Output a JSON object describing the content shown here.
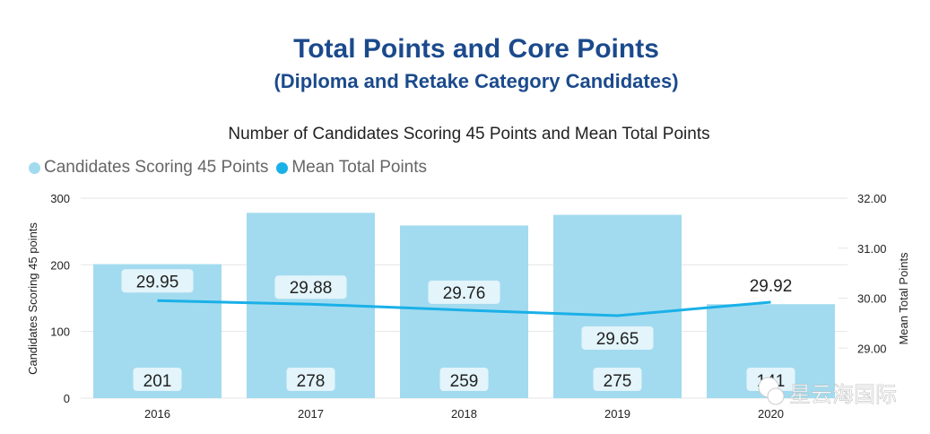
{
  "title": "Total Points and Core Points",
  "subtitle": "(Diploma and Retake Category Candidates)",
  "watermark": "星云海国际",
  "colors": {
    "bar": "#a2dbef",
    "line": "#1ab0e8",
    "title": "#1b4a8c",
    "label_box": "#e3f4fb"
  },
  "chart_data": {
    "type": "bar+line",
    "title": "Number of Candidates Scoring 45 Points and Mean Total Points",
    "categories": [
      "2016",
      "2017",
      "2018",
      "2019",
      "2020"
    ],
    "series": [
      {
        "name": "Candidates Scoring 45 Points",
        "type": "bar",
        "axis": "left",
        "values": [
          201,
          278,
          259,
          275,
          141
        ],
        "labels": [
          "201",
          "278",
          "259",
          "275",
          "141"
        ]
      },
      {
        "name": "Mean Total Points",
        "type": "line",
        "axis": "right",
        "values": [
          29.95,
          29.88,
          29.76,
          29.65,
          29.92
        ],
        "labels": [
          "29.95",
          "29.88",
          "29.76",
          "29.65",
          "29.92"
        ]
      }
    ],
    "ylabel_left": "Candidates Scoring 45 points",
    "ylabel_right": "Mean Total Points",
    "ylim_left": [
      0,
      300
    ],
    "ylim_right": [
      28,
      32
    ],
    "yticks_left": [
      "0",
      "100",
      "200",
      "300"
    ],
    "yticks_right": [
      "29.00",
      "30.00",
      "31.00",
      "32.00"
    ],
    "grid": true,
    "legend": "top-left"
  }
}
